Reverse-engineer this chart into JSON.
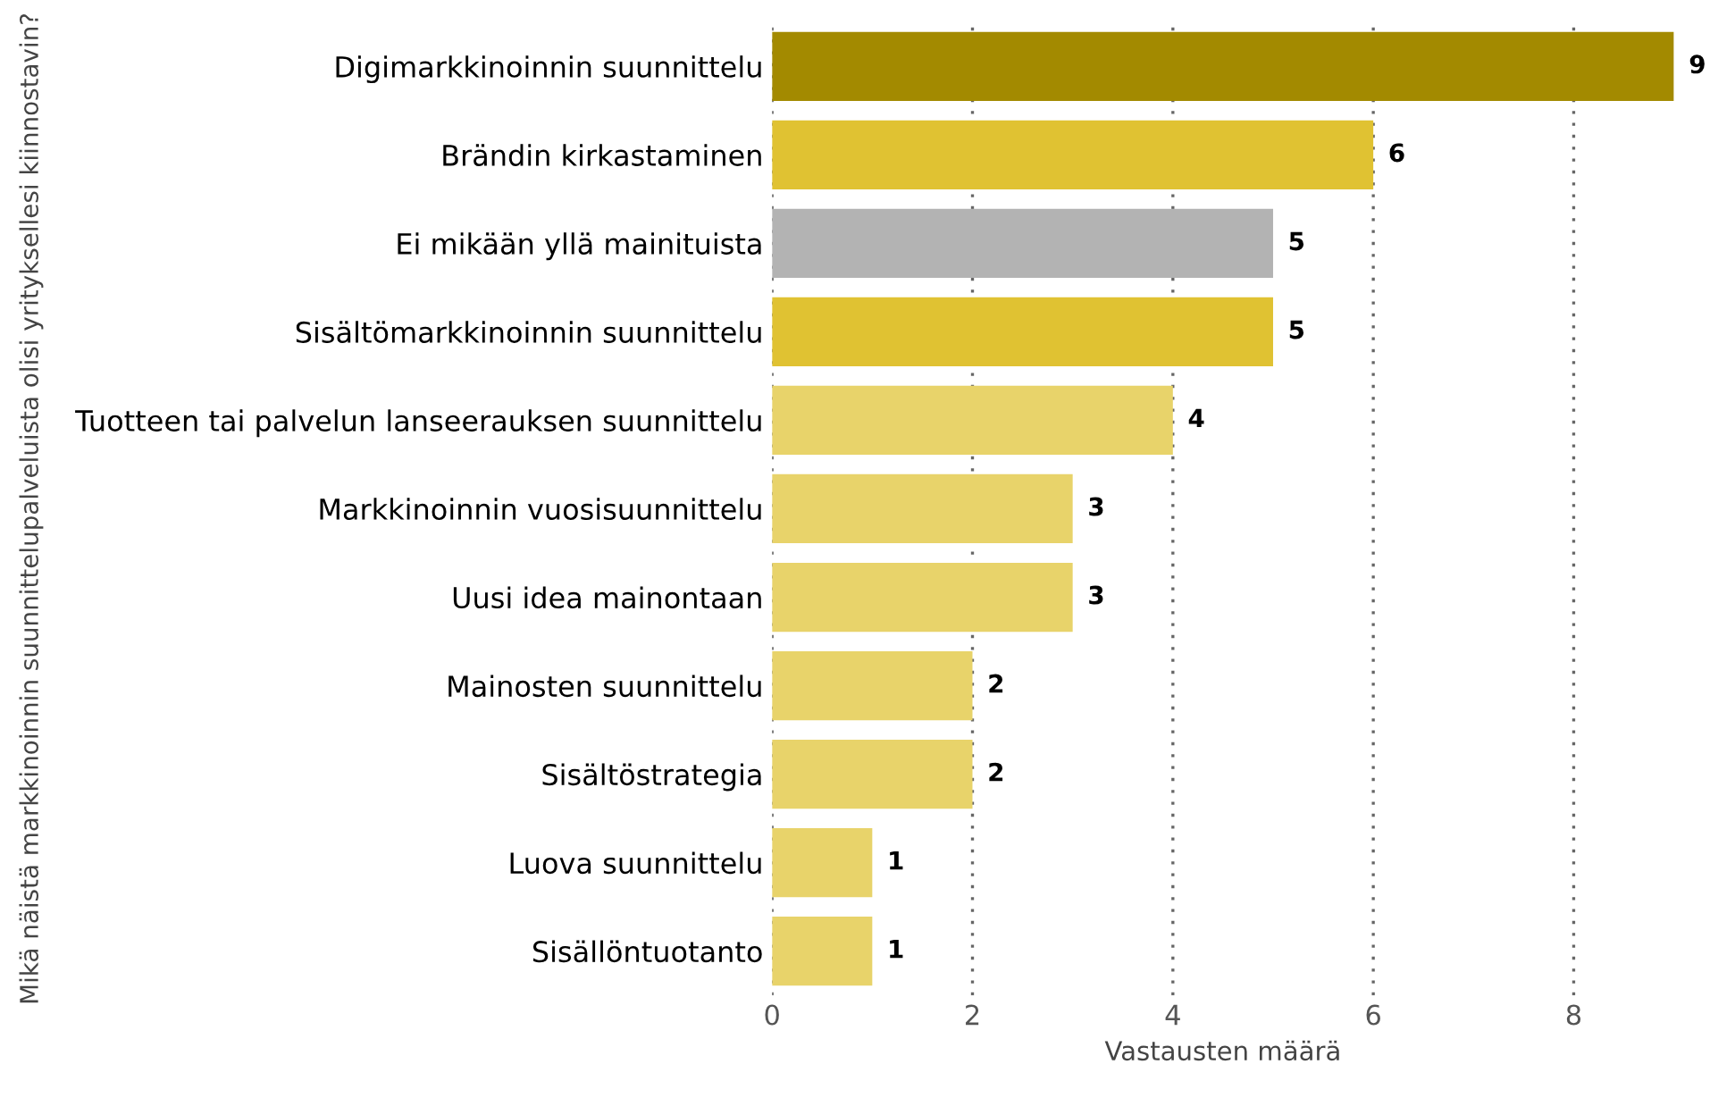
{
  "chart_data": {
    "type": "bar",
    "orientation": "horizontal",
    "xlabel": "Vastausten määrä",
    "ylabel": "Mikä näistä markkinoinnin suunnittelupalveluista olisi yrityksellesi kiinnostavin?",
    "categories": [
      "Digimarkkinoinnin suunnittelu",
      "Brändin kirkastaminen",
      "Ei mikään yllä mainituista",
      "Sisältömarkkinoinnin suunnittelu",
      "Tuotteen tai palvelun lanseerauksen suunnittelu",
      "Markkinoinnin vuosisuunnittelu",
      "Uusi idea mainontaan",
      "Mainosten suunnittelu",
      "Sisältöstrategia",
      "Luova suunnittelu",
      "Sisällöntuotanto"
    ],
    "values": [
      9,
      6,
      5,
      5,
      4,
      3,
      3,
      2,
      2,
      1,
      1
    ],
    "colors": [
      "#a38a00",
      "#e0c232",
      "#b3b3b3",
      "#e0c232",
      "#e8d36a",
      "#e8d36a",
      "#e8d36a",
      "#e8d36a",
      "#e8d36a",
      "#e8d36a",
      "#e8d36a"
    ],
    "data_labels": true,
    "xlim": [
      0,
      9
    ],
    "xticks": [
      0,
      2,
      4,
      6,
      8
    ],
    "grid": "x"
  }
}
